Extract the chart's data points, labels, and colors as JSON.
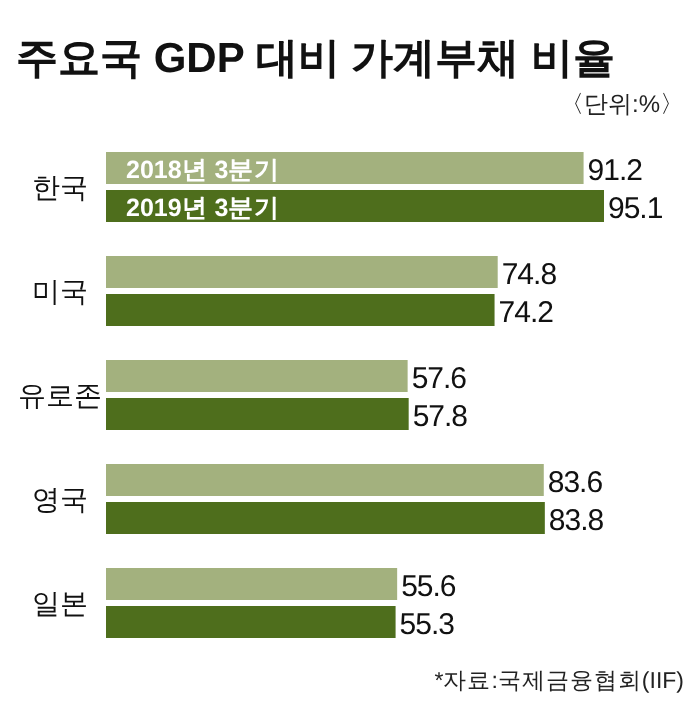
{
  "chart_data": {
    "type": "bar",
    "orientation": "horizontal",
    "title": "주요국 GDP 대비 가계부채 비율",
    "subtitle": "〈단위:%〉",
    "categories": [
      "한국",
      "미국",
      "유로존",
      "영국",
      "일본"
    ],
    "series": [
      {
        "name": "2018년 3분기",
        "color": "#a3b17e",
        "values": [
          91.2,
          74.8,
          57.6,
          83.6,
          55.6
        ]
      },
      {
        "name": "2019년 3분기",
        "color": "#4e6e1c",
        "values": [
          95.1,
          74.2,
          57.8,
          83.8,
          55.3
        ]
      }
    ],
    "data_labels": true,
    "annotations": [
      "*자료:국제금융협회(IIF)"
    ]
  }
}
